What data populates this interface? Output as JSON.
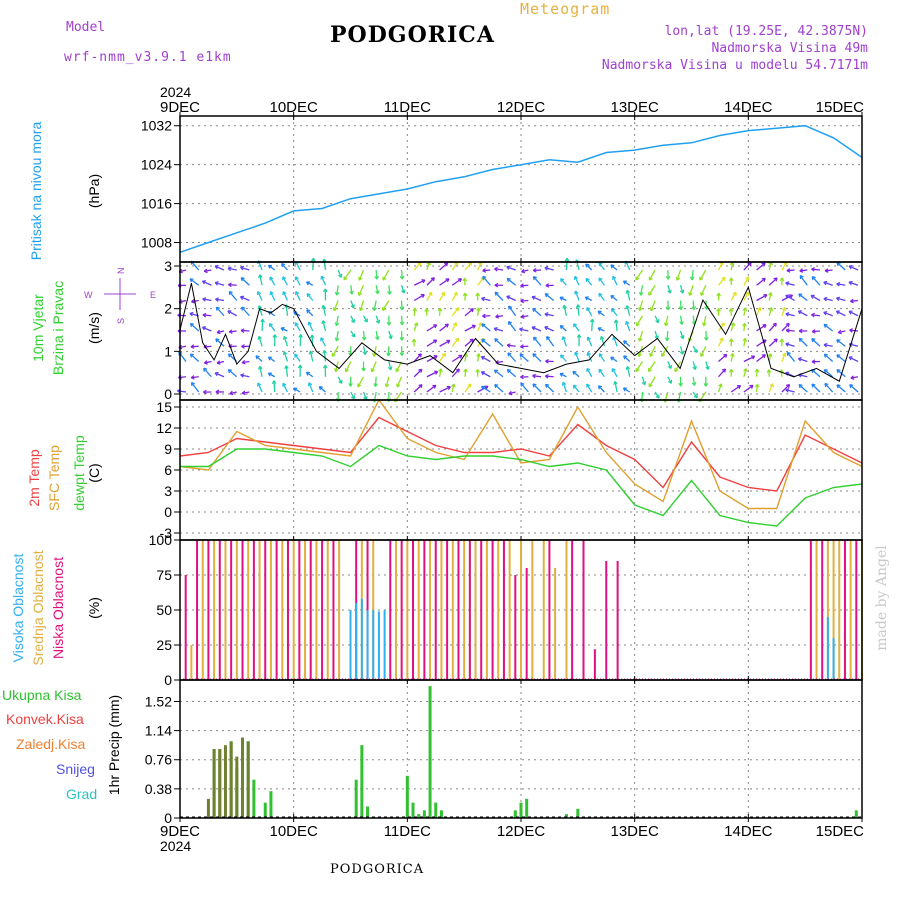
{
  "header": {
    "model_label": "Model",
    "model_name": "wrf-nmm_v3.9.1 e1km",
    "title": "PODGORICA",
    "meteogram": "Meteogram",
    "lonlat": "lon,lat (19.25E, 42.3875N)",
    "elevation": "Nadmorska Visina 49m",
    "model_elevation": "Nadmorska Visina u modelu 54.7171m",
    "year_top": "2024"
  },
  "time_axis": {
    "labels": [
      "9DEC",
      "10DEC",
      "11DEC",
      "12DEC",
      "13DEC",
      "14DEC",
      "15DEC"
    ],
    "year_bottom": "2024"
  },
  "footer": {
    "station": "PODGORICA",
    "made_by": "made by Angel"
  },
  "colors": {
    "pressure": "#20a0f0",
    "t2m": "#f04040",
    "tsfc": "#e0a030",
    "dewpoint": "#30d030",
    "high_cloud": "#30b0f0",
    "mid_cloud": "#e0b040",
    "low_cloud": "#e01080",
    "total_precip": "#30c030",
    "conv_precip": "#f04040",
    "frozen_precip": "#f08030",
    "snow": "#5050e0",
    "graupel": "#30c0c0",
    "mix_precip": "#708030",
    "wind_speed": "#000000"
  },
  "panels": {
    "pressure": {
      "label1": "Pritisak na nivou mora",
      "unit": "(hPa)",
      "ticks": [
        "1032",
        "1024",
        "1016",
        "1008"
      ]
    },
    "wind": {
      "label1": "10m Vjetar",
      "label2": "Brzina i Pravac",
      "unit": "(m/s)",
      "ticks": [
        "3",
        "2",
        "1",
        "0"
      ],
      "compass_w": "W",
      "compass_e": "E",
      "compass_n": "N",
      "compass_s": "S"
    },
    "temp": {
      "label1": "2m Temp",
      "label2": "SFC Temp",
      "label3": "dewpt Temp",
      "unit": "(C)",
      "ticks": [
        "15",
        "12",
        "9",
        "6",
        "3",
        "0",
        "-3"
      ]
    },
    "cloud": {
      "label1": "Visoka Oblacnost",
      "label2": "Srednja Oblacnost",
      "label3": "Niska Oblacnost",
      "unit": "(%)",
      "ticks": [
        "100",
        "75",
        "50",
        "25",
        "0"
      ]
    },
    "precip": {
      "legend": [
        "Ukupna Kisa",
        "Konvek.Kisa",
        "Zaledj.Kisa",
        "Snijeg",
        "Grad"
      ],
      "unit": "1hr Precip (mm)",
      "ticks": [
        "1.52",
        "1.14",
        "0.76",
        "0.38",
        "0"
      ]
    }
  },
  "chart_data": [
    {
      "type": "line",
      "series": [
        {
          "name": "Pritisak na nivou mora",
          "x": [
            0,
            0.25,
            0.5,
            0.75,
            1,
            1.25,
            1.5,
            1.75,
            2,
            2.25,
            2.5,
            2.75,
            3,
            3.25,
            3.5,
            3.75,
            4,
            4.25,
            4.5,
            4.75,
            5,
            5.25,
            5.5,
            5.75,
            6
          ],
          "values": [
            1006,
            1008,
            1010,
            1012,
            1014.5,
            1015,
            1017,
            1018,
            1019,
            1020.5,
            1021.5,
            1023,
            1024,
            1025,
            1024.5,
            1026.5,
            1027,
            1028,
            1028.5,
            1030,
            1031,
            1031.5,
            1032,
            1029.5,
            1025.5
          ]
        }
      ],
      "ylim": [
        1004,
        1034
      ]
    },
    {
      "type": "line",
      "series": [
        {
          "name": "10m Vjetar",
          "x": [
            0,
            0.1,
            0.2,
            0.3,
            0.4,
            0.5,
            0.6,
            0.7,
            0.8,
            0.9,
            1,
            1.2,
            1.4,
            1.6,
            1.8,
            2,
            2.2,
            2.4,
            2.6,
            2.8,
            3,
            3.2,
            3.4,
            3.6,
            3.8,
            4,
            4.2,
            4.4,
            4.6,
            4.8,
            5,
            5.2,
            5.4,
            5.6,
            5.8,
            6
          ],
          "values": [
            1.5,
            2.6,
            1.2,
            0.8,
            1.4,
            0.7,
            1.0,
            2.0,
            1.9,
            2.1,
            2.0,
            1.0,
            0.6,
            1.2,
            0.8,
            0.7,
            0.9,
            0.5,
            1.3,
            0.7,
            0.6,
            0.5,
            0.7,
            0.8,
            1.4,
            0.9,
            1.3,
            0.6,
            2.2,
            1.4,
            2.5,
            0.6,
            0.4,
            0.6,
            0.3,
            2.0
          ]
        }
      ],
      "ylim": [
        0,
        3
      ]
    },
    {
      "type": "line",
      "series": [
        {
          "name": "2m Temp",
          "x": [
            0,
            0.25,
            0.5,
            0.75,
            1,
            1.25,
            1.5,
            1.75,
            2,
            2.25,
            2.5,
            2.75,
            3,
            3.25,
            3.5,
            3.75,
            4,
            4.25,
            4.5,
            4.75,
            5,
            5.25,
            5.5,
            5.75,
            6
          ],
          "values": [
            8,
            8.5,
            10.5,
            10,
            9.5,
            9,
            8.5,
            13.5,
            11.5,
            9.5,
            8.5,
            8.5,
            9,
            8,
            12.5,
            9.5,
            7.5,
            3.5,
            10,
            5,
            3.5,
            3,
            11,
            9,
            7
          ]
        },
        {
          "name": "SFC Temp",
          "x": [
            0,
            0.25,
            0.5,
            0.75,
            1,
            1.25,
            1.5,
            1.75,
            2,
            2.25,
            2.5,
            2.75,
            3,
            3.25,
            3.5,
            3.75,
            4,
            4.25,
            4.5,
            4.75,
            5,
            5.25,
            5.5,
            5.75,
            6
          ],
          "values": [
            6.5,
            6,
            11.5,
            9.5,
            9,
            8.5,
            8,
            16,
            10.5,
            8.5,
            7.5,
            14,
            7,
            7.5,
            15,
            8.5,
            4,
            1.5,
            13,
            3,
            0.5,
            0.5,
            13,
            8.5,
            6.5
          ]
        },
        {
          "name": "dewpt Temp",
          "x": [
            0,
            0.25,
            0.5,
            0.75,
            1,
            1.25,
            1.5,
            1.75,
            2,
            2.25,
            2.5,
            2.75,
            3,
            3.25,
            3.5,
            3.75,
            4,
            4.25,
            4.5,
            4.75,
            5,
            5.25,
            5.5,
            5.75,
            6
          ],
          "values": [
            6.5,
            6.5,
            9,
            9,
            8.5,
            8,
            6.5,
            9.5,
            8,
            7.5,
            8,
            8,
            7.5,
            6.5,
            7,
            6,
            1,
            -0.5,
            4.5,
            -0.5,
            -1.5,
            -2,
            2,
            3.5,
            4
          ]
        }
      ],
      "ylim": [
        -4,
        16
      ]
    },
    {
      "type": "bar",
      "series": [
        {
          "name": "Visoka Oblacnost",
          "x": [
            1.5,
            1.55,
            1.6,
            1.65,
            1.7,
            1.75,
            1.8,
            5.7,
            5.75
          ],
          "values": [
            50,
            55,
            58,
            50,
            50,
            49,
            50,
            45,
            30
          ]
        },
        {
          "name": "Srednja Oblacnost",
          "x": [
            0.1,
            0.2,
            0.3,
            0.4,
            0.5,
            0.6,
            0.7,
            0.8,
            0.9,
            1.0,
            1.1,
            1.2,
            1.3,
            1.4,
            1.6,
            1.7,
            1.9,
            2.0,
            2.1,
            2.2,
            2.3,
            2.4,
            2.5,
            2.6,
            2.7,
            2.8,
            2.9,
            3.0,
            3.1,
            3.2,
            3.3,
            3.4,
            5.6,
            5.7,
            5.75,
            5.8,
            5.9,
            6.0
          ],
          "values": [
            25,
            100,
            100,
            100,
            100,
            100,
            100,
            100,
            100,
            100,
            100,
            100,
            100,
            100,
            100,
            100,
            100,
            100,
            100,
            100,
            100,
            100,
            100,
            100,
            100,
            100,
            100,
            100,
            100,
            100,
            80,
            100,
            100,
            100,
            100,
            100,
            100,
            100
          ]
        },
        {
          "name": "Niska Oblacnost",
          "x": [
            0.05,
            0.15,
            0.25,
            0.35,
            0.45,
            0.55,
            0.65,
            0.75,
            0.85,
            0.95,
            1.05,
            1.15,
            1.25,
            1.35,
            1.55,
            1.65,
            1.85,
            1.95,
            2.05,
            2.15,
            2.25,
            2.35,
            2.45,
            2.55,
            2.65,
            2.75,
            2.85,
            2.95,
            3.05,
            3.25,
            3.45,
            3.55,
            3.65,
            3.75,
            3.85,
            5.55,
            5.65,
            5.85,
            5.95
          ],
          "values": [
            75,
            100,
            100,
            100,
            100,
            100,
            100,
            100,
            100,
            100,
            100,
            100,
            100,
            100,
            100,
            100,
            100,
            100,
            100,
            100,
            100,
            100,
            100,
            100,
            100,
            100,
            100,
            75,
            80,
            100,
            100,
            100,
            22,
            85,
            85,
            100,
            100,
            100,
            100
          ]
        }
      ],
      "ylim": [
        0,
        100
      ]
    },
    {
      "type": "bar",
      "series": [
        {
          "name": "Ukupna Kisa",
          "x": [
            0.3,
            0.35,
            0.45,
            0.5,
            0.55,
            0.6,
            0.65,
            0.75,
            0.8,
            1.55,
            1.6,
            1.65,
            2.0,
            2.05,
            2.1,
            2.15,
            2.2,
            2.25,
            2.3,
            2.95,
            3.0,
            3.05,
            3.4,
            3.5,
            5.95
          ],
          "values": [
            0.9,
            0.9,
            1.0,
            0.65,
            1.05,
            1.0,
            0.5,
            0.2,
            0.35,
            0.5,
            0.95,
            0.15,
            0.55,
            0.2,
            0.05,
            0.1,
            1.72,
            0.2,
            0.1,
            0.1,
            0.2,
            0.25,
            0.05,
            0.12,
            0.1
          ]
        },
        {
          "name": "Konvek.Kisa",
          "x": [
            0.25,
            0.3,
            0.35,
            0.4,
            0.45,
            0.5,
            0.55,
            0.6
          ],
          "values": [
            0.25,
            0.9,
            0.9,
            0.95,
            1.0,
            0.8,
            1.05,
            1.0
          ]
        }
      ],
      "ylim": [
        0,
        1.8
      ]
    }
  ]
}
